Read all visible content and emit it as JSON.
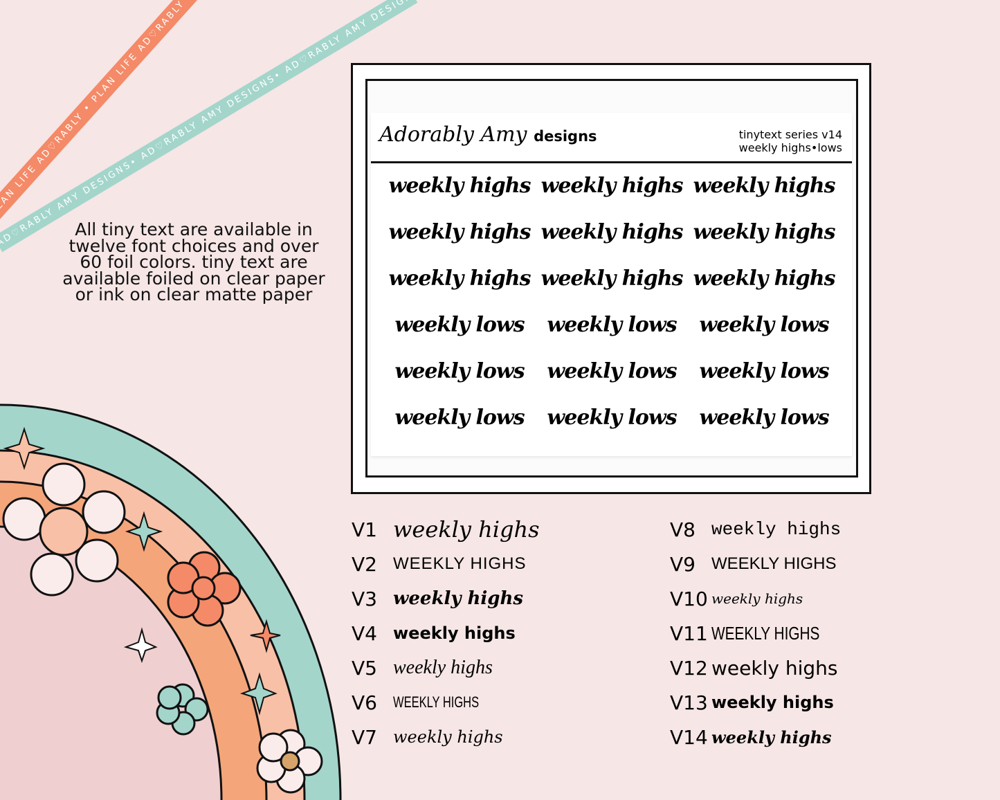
{
  "ribbons": {
    "top": "PLAN LIFE AD♡RABLY • PLAN LIFE AD♡RABLY • PLAN LIFE AD♡RABLY",
    "bottom": "AD♡RABLY AMY DESIGNS• AD♡RABLY AMY DESIGNS• AD♡RABLY AMY DESIGNS"
  },
  "blurb": "All tiny text are available in twelve font choices and over 60 foil colors.  tiny text are available foiled on clear paper or ink on clear matte paper",
  "sheet": {
    "logo_script": "Adorably Amy",
    "logo_word": "designs",
    "series_line1": "tinytext series v14",
    "series_line2": "weekly highs•lows",
    "cells": [
      "weekly highs",
      "weekly highs",
      "weekly highs",
      "weekly highs",
      "weekly highs",
      "weekly highs",
      "weekly highs",
      "weekly highs",
      "weekly highs",
      "weekly lows",
      "weekly lows",
      "weekly lows",
      "weekly lows",
      "weekly lows",
      "weekly lows",
      "weekly lows",
      "weekly lows",
      "weekly lows"
    ]
  },
  "variants_left": [
    {
      "label": "V1",
      "text": "weekly highs"
    },
    {
      "label": "V2",
      "text": "WEEKLY HIGHS"
    },
    {
      "label": "V3",
      "text": "weekly highs"
    },
    {
      "label": "V4",
      "text": "weekly highs"
    },
    {
      "label": "V5",
      "text": "weekly highs"
    },
    {
      "label": "V6",
      "text": "WEEKLY HIGHS"
    },
    {
      "label": "V7",
      "text": "weekly highs"
    }
  ],
  "variants_right": [
    {
      "label": "V8",
      "text": "weekly highs"
    },
    {
      "label": "V9",
      "text": "WEEKLY HIGHS"
    },
    {
      "label": "V10",
      "text": "weekly highs"
    },
    {
      "label": "V11",
      "text": "WEEKLY HIGHS"
    },
    {
      "label": "V12",
      "text": "weekly highs"
    },
    {
      "label": "V13",
      "text": "weekly highs"
    },
    {
      "label": "V14",
      "text": "weekly highs"
    }
  ],
  "colors": {
    "background": "#f6e6e6",
    "coral": "#f48a68",
    "teal": "#a3d5cb",
    "peach": "#f8c0a6",
    "orange": "#f4a57a",
    "pink": "#efcfcf"
  }
}
